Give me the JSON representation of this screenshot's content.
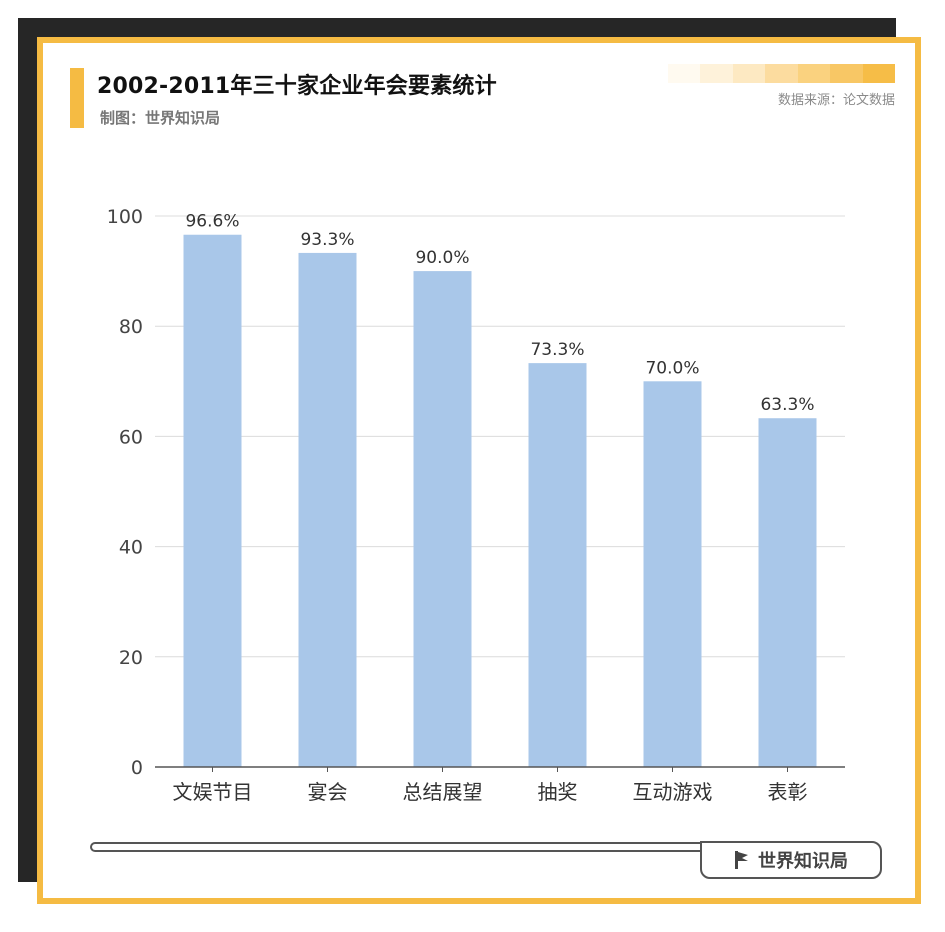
{
  "header": {
    "title": "2002-2011年三十家企业年会要素统计",
    "maker": "制图：世界知识局",
    "source": "数据来源：论文数据"
  },
  "footer": {
    "brand": "世界知识局"
  },
  "colors": {
    "accent": "#f5bb43",
    "frame_shadow": "#262626",
    "bar": "#a9c7e9",
    "grid": "#dcdcdc",
    "gradient": [
      "#fffaf0",
      "#fef2da",
      "#fde9c2",
      "#fcdc9f",
      "#fad27f",
      "#f8c765",
      "#f6bd47"
    ]
  },
  "chart_data": {
    "type": "bar",
    "categories": [
      "文娱节目",
      "宴会",
      "总结展望",
      "抽奖",
      "互动游戏",
      "表彰"
    ],
    "values": [
      96.6,
      93.3,
      90.0,
      73.3,
      70.0,
      63.3
    ],
    "value_labels": [
      "96.6%",
      "93.3%",
      "90.0%",
      "73.3%",
      "70.0%",
      "63.3%"
    ],
    "ylim": [
      0,
      100
    ],
    "yticks": [
      0,
      20,
      40,
      60,
      80,
      100
    ],
    "grid": true,
    "legend": false
  }
}
